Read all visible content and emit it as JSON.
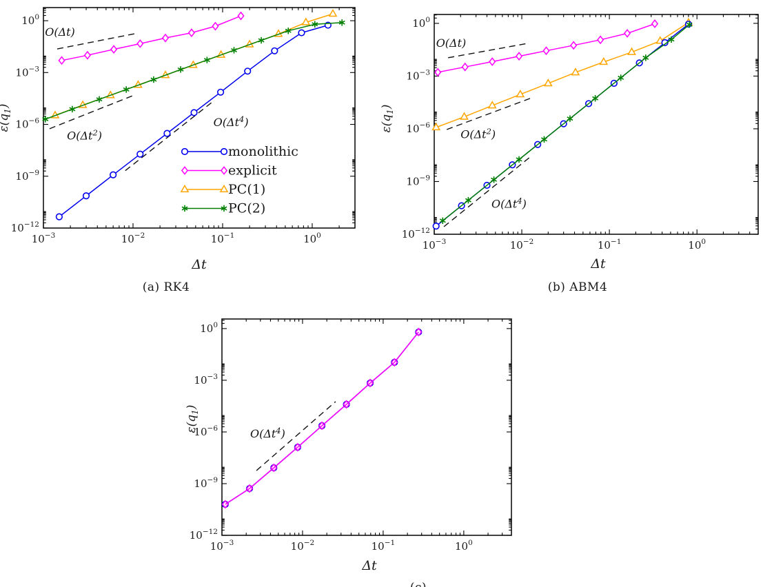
{
  "figure": {
    "background": "#ffffff",
    "captions": {
      "a": "(a) RK4",
      "b": "(b) ABM4",
      "c": "(c)"
    },
    "axis_color": "#000000",
    "text_color": "#1a1a1a",
    "guide_color": "#111111",
    "series_colors": {
      "monolithic": "#0000ee",
      "explicit": "#ff00ff",
      "pc1": "#ffa500",
      "pc2": "#008000"
    }
  },
  "chart_data": [
    {
      "id": "a",
      "type": "line",
      "caption": "(a) RK4",
      "xlabel": "Δt",
      "ylabel": {
        "pre": "ε(q",
        "sub": "1",
        "post": ")"
      },
      "xscale": "log",
      "yscale": "log",
      "xlim": [
        0.001,
        3.0
      ],
      "ylim": [
        1e-12,
        5.75
      ],
      "xtick_exponents": [
        -3,
        -2,
        -1,
        0
      ],
      "ytick_exponents": [
        0,
        -3,
        -6,
        -9,
        -12
      ],
      "legend": [
        "monolithic",
        "explicit",
        "PC(1)",
        "PC(2)"
      ],
      "series": [
        {
          "name": "explicit",
          "marker": "diamond",
          "color": "#ff00ff",
          "x": [
            0.0016,
            0.0031,
            0.0061,
            0.012,
            0.023,
            0.045,
            0.083,
            0.16
          ],
          "y": [
            0.005,
            0.01,
            0.022,
            0.047,
            0.1,
            0.2,
            0.48,
            1.9
          ]
        },
        {
          "name": "monolithic",
          "marker": "circle",
          "color": "#0000ee",
          "x": [
            0.0015,
            0.003,
            0.006,
            0.012,
            0.024,
            0.048,
            0.095,
            0.19,
            0.38,
            0.76,
            1.5
          ],
          "y": [
            4.5e-12,
            7.3e-11,
            1.2e-09,
            1.9e-08,
            3e-07,
            4.8e-06,
            7.3e-05,
            0.0012,
            0.018,
            0.2,
            0.55
          ]
        },
        {
          "name": "PC(1)",
          "marker": "triangle",
          "color": "#ffa500",
          "x": [
            0.00135,
            0.00275,
            0.0056,
            0.0114,
            0.023,
            0.047,
            0.096,
            0.2,
            0.42,
            0.85,
            1.7
          ],
          "y": [
            3.3e-06,
            1.3e-05,
            4.8e-05,
            0.00019,
            0.0007,
            0.0027,
            0.0105,
            0.042,
            0.17,
            0.8,
            2.5
          ]
        },
        {
          "name": "PC(2)",
          "marker": "star",
          "color": "#008000",
          "x": [
            0.00105,
            0.0021,
            0.0042,
            0.0084,
            0.017,
            0.034,
            0.067,
            0.134,
            0.27,
            0.54,
            1.07,
            2.15
          ],
          "y": [
            2e-06,
            7.6e-06,
            2.8e-05,
            0.000104,
            0.00039,
            0.0015,
            0.0053,
            0.0195,
            0.073,
            0.26,
            0.62,
            0.78
          ]
        }
      ],
      "guides": [
        {
          "label": {
            "pre": "O(Δt",
            "sup": "",
            "post": ")"
          },
          "x": [
            0.001425,
            0.01037
          ],
          "y": [
            0.0232,
            0.175
          ],
          "label_xy": [
            0.00104,
            0.133
          ]
        },
        {
          "label": {
            "pre": "O(Δt",
            "sup": "2",
            "post": ")"
          },
          "x": [
            0.00117,
            0.01037
          ],
          "y": [
            5.6e-07,
            5e-05
          ],
          "label_xy": [
            0.00183,
            1.3e-07
          ]
        },
        {
          "label": {
            "pre": "O(Δt",
            "sup": "4",
            "post": ")"
          },
          "x": [
            0.0082,
            0.077
          ],
          "y": [
            2.1e-09,
            2e-05
          ],
          "label_xy": [
            0.079,
            8e-07
          ]
        }
      ]
    },
    {
      "id": "b",
      "type": "line",
      "caption": "(b) ABM4",
      "xlabel": "Δt",
      "ylabel": {
        "pre": "ε(q",
        "sub": "1",
        "post": ")"
      },
      "xscale": "log",
      "yscale": "log",
      "xlim": [
        0.001,
        5.0
      ],
      "ylim": [
        1e-12,
        3.2
      ],
      "xtick_exponents": [
        -3,
        -2,
        -1,
        0
      ],
      "ytick_exponents": [
        0,
        -3,
        -6,
        -9,
        -12
      ],
      "legend": null,
      "series": [
        {
          "name": "explicit",
          "marker": "diamond",
          "color": "#ff00ff",
          "x": [
            0.0011,
            0.00225,
            0.0046,
            0.0093,
            0.019,
            0.039,
            0.079,
            0.16,
            0.33
          ],
          "y": [
            0.00165,
            0.0033,
            0.0066,
            0.0135,
            0.0275,
            0.056,
            0.115,
            0.27,
            0.95
          ]
        },
        {
          "name": "PC(1)",
          "marker": "triangle",
          "color": "#ffa500",
          "x": [
            0.00105,
            0.0022,
            0.0046,
            0.0096,
            0.02,
            0.041,
            0.086,
            0.18,
            0.38,
            0.8
          ],
          "y": [
            1.2e-06,
            4.8e-06,
            2.1e-05,
            9e-05,
            0.00038,
            0.0016,
            0.0063,
            0.023,
            0.1,
            1.1
          ]
        },
        {
          "name": "monolithic",
          "marker": "circle",
          "color": "#0000ee",
          "x": [
            0.00105,
            0.00205,
            0.004,
            0.0078,
            0.0152,
            0.03,
            0.058,
            0.113,
            0.22,
            0.43,
            0.8
          ],
          "y": [
            2.9e-12,
            4.2e-11,
            6.1e-10,
            8.9e-09,
            1.28e-07,
            1.94e-06,
            2.7e-05,
            0.00039,
            0.0056,
            0.08,
            0.9
          ]
        },
        {
          "name": "PC(2)",
          "marker": "star",
          "color": "#008000",
          "x": [
            0.00125,
            0.00245,
            0.0048,
            0.0093,
            0.018,
            0.0355,
            0.069,
            0.135,
            0.26,
            0.51,
            0.82
          ],
          "y": [
            5.9e-12,
            8.6e-11,
            1.27e-09,
            1.8e-08,
            2.5e-07,
            3.8e-06,
            5.4e-05,
            0.0008,
            0.011,
            0.12,
            0.85
          ]
        }
      ],
      "guides": [
        {
          "label": {
            "pre": "O(Δt",
            "sup": "",
            "post": ")"
          },
          "x": [
            0.00144,
            0.0118
          ],
          "y": [
            0.011,
            0.073
          ],
          "label_xy": [
            0.00105,
            0.045
          ]
        },
        {
          "label": {
            "pre": "O(Δt",
            "sup": "2",
            "post": ")"
          },
          "x": [
            0.00139,
            0.0136
          ],
          "y": [
            9.1e-07,
            6.3e-05
          ],
          "label_xy": [
            0.002,
            3e-07
          ]
        },
        {
          "label": {
            "pre": "O(Δt",
            "sup": "4",
            "post": ")"
          },
          "x": [
            0.00129,
            0.0127
          ],
          "y": [
            2.7e-12,
            2.7e-08
          ],
          "label_xy": [
            0.0045,
            3.3e-11
          ]
        }
      ]
    },
    {
      "id": "c",
      "type": "line",
      "caption": "(c)",
      "xlabel": "Δt",
      "ylabel": {
        "pre": "ε(q",
        "sub": "1",
        "post": ")"
      },
      "xscale": "log",
      "yscale": "log",
      "xlim": [
        0.001,
        3.9
      ],
      "ylim": [
        1e-12,
        3.6
      ],
      "xtick_exponents": [
        -3,
        -2,
        -1,
        0
      ],
      "ytick_exponents": [
        0,
        -3,
        -6,
        -9,
        -12
      ],
      "legend": null,
      "series": [
        {
          "name": "monolithic",
          "marker": "circle",
          "color": "#0000ee",
          "x": [
            0.0011,
            0.0022,
            0.0044,
            0.0087,
            0.0174,
            0.035,
            0.069,
            0.138,
            0.275
          ],
          "y": [
            6.3e-11,
            5.2e-10,
            8.3e-09,
            1.3e-07,
            2.3e-06,
            4e-05,
            0.00069,
            0.011,
            0.63
          ]
        },
        {
          "name": "explicit",
          "marker": "diamond",
          "color": "#ff00ff",
          "marker_fill": "none",
          "x": [
            0.0011,
            0.0022,
            0.0044,
            0.0087,
            0.0174,
            0.035,
            0.069,
            0.138,
            0.275
          ],
          "y": [
            6.3e-11,
            5.2e-10,
            8.3e-09,
            1.3e-07,
            2.3e-06,
            4e-05,
            0.00069,
            0.011,
            0.63
          ]
        }
      ],
      "guides": [
        {
          "label": {
            "pre": "O(Δt",
            "sup": "4",
            "post": ")"
          },
          "x": [
            0.00268,
            0.0257
          ],
          "y": [
            5.75e-09,
            5.75e-05
          ],
          "label_xy": [
            0.00224,
            4.8e-07
          ]
        }
      ]
    }
  ]
}
